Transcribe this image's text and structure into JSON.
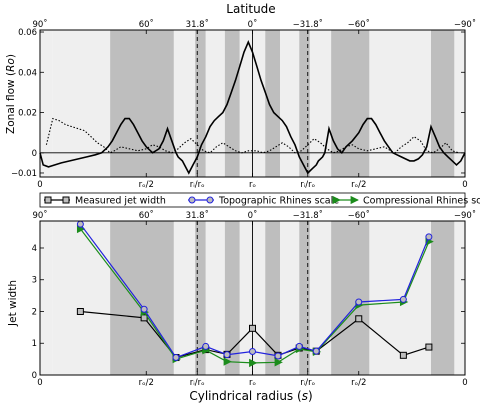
{
  "chart_data": [
    {
      "type": "line",
      "title": "Latitude",
      "ylabel": "Zonal flow (Ro)",
      "ylim": [
        -0.012,
        0.061
      ],
      "xlim": [
        -1,
        1
      ],
      "y_ticks": [
        "−0.01",
        "0",
        "0.02",
        "0.04",
        "0.06"
      ],
      "top_x_ticks": [
        "90˚",
        "60˚",
        "31.8˚",
        "0˚",
        "−31.8˚",
        "−60˚",
        "−90˚"
      ],
      "bottom_x_ticks": [
        "0",
        "rₒ/2",
        "rᵢ/rₒ",
        "rₒ",
        "rᵢ/rₒ",
        "rₒ/2",
        "0"
      ],
      "series": [
        {
          "style": "solid",
          "x": [
            -1.0,
            -0.985,
            -0.96,
            -0.93,
            -0.9,
            -0.86,
            -0.82,
            -0.78,
            -0.74,
            -0.71,
            -0.68,
            -0.66,
            -0.64,
            -0.62,
            -0.6,
            -0.58,
            -0.56,
            -0.54,
            -0.52,
            -0.5,
            -0.47,
            -0.44,
            -0.42,
            -0.4,
            -0.38,
            -0.36,
            -0.35,
            -0.34,
            -0.33,
            -0.32,
            -0.31,
            -0.3,
            -0.28,
            -0.26,
            -0.24,
            -0.22,
            -0.2,
            -0.18,
            -0.16,
            -0.14,
            -0.12,
            -0.1,
            -0.08,
            -0.06,
            -0.04,
            -0.02,
            0.0,
            0.02,
            0.04,
            0.06,
            0.08,
            0.1,
            0.12,
            0.14,
            0.16,
            0.18,
            0.2,
            0.22,
            0.24,
            0.26,
            0.28,
            0.3,
            0.31,
            0.32,
            0.33,
            0.34,
            0.35,
            0.36,
            0.38,
            0.4,
            0.42,
            0.44,
            0.47,
            0.5,
            0.52,
            0.54,
            0.56,
            0.58,
            0.6,
            0.62,
            0.64,
            0.66,
            0.68,
            0.7,
            0.72,
            0.74,
            0.76,
            0.78,
            0.8,
            0.82,
            0.84,
            0.86,
            0.88,
            0.9,
            0.92,
            0.94,
            0.96,
            0.98,
            1.0
          ],
          "y": [
            0.0,
            -0.006,
            -0.007,
            -0.006,
            -0.005,
            -0.004,
            -0.003,
            -0.002,
            -0.001,
            0.0,
            0.003,
            0.006,
            0.01,
            0.014,
            0.017,
            0.017,
            0.014,
            0.01,
            0.006,
            0.003,
            0.0,
            0.002,
            0.006,
            0.012,
            0.006,
            0.0,
            -0.002,
            -0.003,
            -0.004,
            -0.006,
            -0.008,
            -0.01,
            -0.006,
            -0.002,
            0.004,
            0.008,
            0.013,
            0.016,
            0.018,
            0.02,
            0.024,
            0.03,
            0.036,
            0.043,
            0.05,
            0.055,
            0.05,
            0.043,
            0.036,
            0.03,
            0.024,
            0.02,
            0.018,
            0.016,
            0.013,
            0.008,
            0.004,
            -0.002,
            -0.006,
            -0.01,
            -0.008,
            -0.006,
            -0.004,
            -0.003,
            -0.002,
            0.0,
            0.006,
            0.012,
            0.006,
            0.002,
            0.0,
            0.003,
            0.006,
            0.01,
            0.014,
            0.017,
            0.017,
            0.014,
            0.01,
            0.006,
            0.003,
            0.0,
            -0.001,
            -0.002,
            -0.003,
            -0.004,
            -0.004,
            -0.003,
            -0.001,
            0.003,
            0.013,
            0.008,
            0.003,
            0.0,
            -0.002,
            -0.004,
            -0.006,
            -0.004,
            0.0
          ]
        },
        {
          "style": "dotted",
          "x": [
            -0.97,
            -0.94,
            -0.91,
            -0.88,
            -0.85,
            -0.82,
            -0.79,
            -0.76,
            -0.73,
            -0.7,
            -0.67,
            -0.65,
            -0.62,
            -0.58,
            -0.54,
            -0.5,
            -0.47,
            -0.44,
            -0.41,
            -0.38,
            -0.35,
            -0.32,
            -0.29,
            -0.26,
            -0.23,
            -0.2,
            -0.17,
            -0.14,
            -0.11,
            -0.08,
            -0.05,
            -0.02,
            0.02,
            0.05,
            0.08,
            0.11,
            0.14,
            0.17,
            0.2,
            0.23,
            0.26,
            0.29,
            0.32,
            0.35,
            0.38,
            0.41,
            0.44,
            0.47,
            0.5,
            0.54,
            0.58,
            0.62,
            0.65,
            0.67,
            0.7,
            0.73,
            0.76,
            0.79,
            0.82,
            0.85,
            0.88,
            0.91,
            0.94,
            0.97
          ],
          "y": [
            0.004,
            0.017,
            0.016,
            0.014,
            0.013,
            0.012,
            0.011,
            0.008,
            0.005,
            0.003,
            0.0,
            0.001,
            0.003,
            0.002,
            0.001,
            0.002,
            0.004,
            0.003,
            0.001,
            0.0,
            0.002,
            0.005,
            0.007,
            0.004,
            0.001,
            0.0,
            0.003,
            0.005,
            0.003,
            0.001,
            0.0,
            0.001,
            0.001,
            0.0,
            0.001,
            0.003,
            0.005,
            0.003,
            0.0,
            0.001,
            0.004,
            0.007,
            0.005,
            0.002,
            0.0,
            0.001,
            0.003,
            0.004,
            0.002,
            0.001,
            0.002,
            0.003,
            0.001,
            0.0,
            0.003,
            0.005,
            0.008,
            0.006,
            0.001,
            0.0,
            0.002,
            0.005,
            0.001,
            0.0
          ]
        }
      ],
      "band_bounds": [
        -1.0,
        -0.94,
        -0.67,
        -0.37,
        -0.27,
        -0.22,
        -0.13,
        -0.06,
        0.06,
        0.13,
        0.22,
        0.27,
        0.37,
        0.55,
        0.84,
        0.95,
        1.0
      ],
      "band_shades": [
        "light",
        "light",
        "dark",
        "light",
        "dark",
        "light",
        "dark",
        "light",
        "dark",
        "light",
        "dark",
        "light",
        "dark",
        "light",
        "dark",
        "light"
      ],
      "vertical_lines": [
        {
          "x": -0.26,
          "style": "dashed"
        },
        {
          "x": 0.0,
          "style": "solid"
        },
        {
          "x": 0.26,
          "style": "dashed"
        }
      ]
    },
    {
      "type": "line",
      "xlabel": "Cylindrical radius (s)",
      "ylabel": "Jet width",
      "ylim": [
        0,
        4.85
      ],
      "xlim": [
        -1,
        1
      ],
      "y_ticks": [
        "0",
        "1",
        "2",
        "3",
        "4"
      ],
      "top_x_ticks": [
        "90˚",
        "60˚",
        "31.8˚",
        "0˚",
        "−31.8˚",
        "−60˚",
        "−90˚"
      ],
      "bottom_x_ticks": [
        "0",
        "rₒ/2",
        "rᵢ/rₒ",
        "rₒ",
        "rᵢ/rₒ",
        "rₒ/2",
        "0"
      ],
      "legend": [
        "Measured jet width",
        "Topographic Rhines scale",
        "Compressional Rhines scale"
      ],
      "series": [
        {
          "name": "Measured jet width",
          "color": "#000000",
          "marker": "square",
          "x": [
            -0.81,
            -0.51,
            -0.36,
            -0.22,
            -0.12,
            0.0,
            0.12,
            0.22,
            0.3,
            0.5,
            0.71,
            0.83
          ],
          "y": [
            2.0,
            1.8,
            0.55,
            0.8,
            0.65,
            1.47,
            0.62,
            0.85,
            0.75,
            1.77,
            0.62,
            0.88
          ]
        },
        {
          "name": "Topographic Rhines scale",
          "color": "#2222dd",
          "marker": "circle",
          "x": [
            -0.81,
            -0.51,
            -0.36,
            -0.22,
            -0.12,
            0.0,
            0.12,
            0.22,
            0.3,
            0.5,
            0.71,
            0.83
          ],
          "y": [
            4.75,
            2.07,
            0.55,
            0.9,
            0.64,
            0.74,
            0.6,
            0.9,
            0.75,
            2.3,
            2.38,
            4.35
          ]
        },
        {
          "name": "Compressional Rhines scale",
          "color": "#1c8c1c",
          "marker": "triangle",
          "x": [
            -0.81,
            -0.51,
            -0.36,
            -0.22,
            -0.12,
            0.0,
            0.12,
            0.22,
            0.3,
            0.5,
            0.71,
            0.83
          ],
          "y": [
            4.6,
            1.98,
            0.5,
            0.78,
            0.42,
            0.38,
            0.4,
            0.82,
            0.73,
            2.2,
            2.3,
            4.2
          ]
        }
      ]
    }
  ]
}
